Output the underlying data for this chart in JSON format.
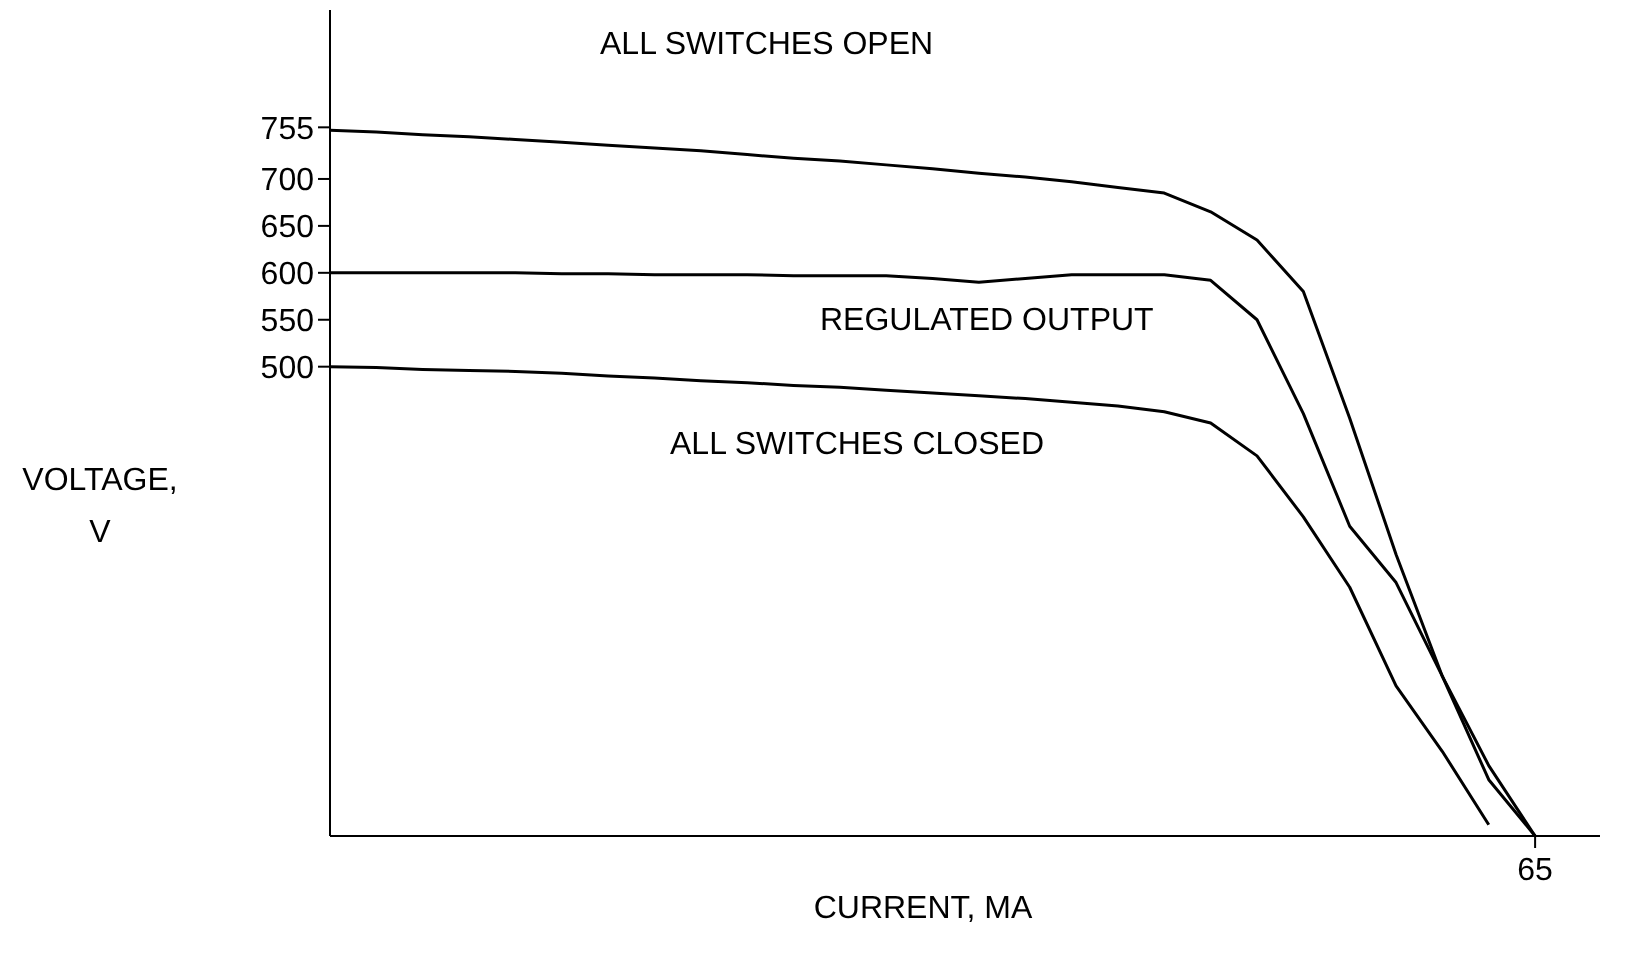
{
  "chart_data": {
    "type": "line",
    "xlabel": "CURRENT, MA",
    "ylabel": "VOLTAGE, V",
    "ylim": [
      0,
      880
    ],
    "yticks": [
      500,
      550,
      600,
      650,
      700,
      755
    ],
    "categories": [
      null,
      null,
      null,
      null,
      null,
      null,
      null,
      null,
      null,
      null,
      null,
      null,
      null,
      null,
      null,
      null,
      null,
      null,
      null,
      null,
      null,
      null,
      null,
      null,
      null,
      null,
      "65",
      null
    ],
    "series": [
      {
        "name": "ALL SWITCHES OPEN",
        "color": "#000000",
        "values": [
          752,
          750,
          747,
          745,
          742,
          739,
          736,
          733,
          730,
          726,
          722,
          719,
          715,
          711,
          706,
          702,
          697,
          691,
          685,
          665,
          635,
          580,
          445,
          300,
          170,
          75,
          0,
          null
        ]
      },
      {
        "name": "REGULATED OUTPUT",
        "color": "#000000",
        "values": [
          600,
          600,
          600,
          600,
          600,
          599,
          599,
          598,
          598,
          598,
          597,
          597,
          597,
          594,
          590,
          594,
          598,
          598,
          598,
          592,
          550,
          450,
          330,
          270,
          170,
          60,
          0,
          null
        ]
      },
      {
        "name": "ALL SWITCHES CLOSED",
        "color": "#000000",
        "values": [
          500,
          499,
          497,
          496,
          495,
          493,
          490,
          488,
          485,
          483,
          480,
          478,
          475,
          472,
          469,
          466,
          462,
          458,
          452,
          440,
          405,
          340,
          265,
          160,
          90,
          12,
          null,
          null
        ]
      }
    ]
  }
}
